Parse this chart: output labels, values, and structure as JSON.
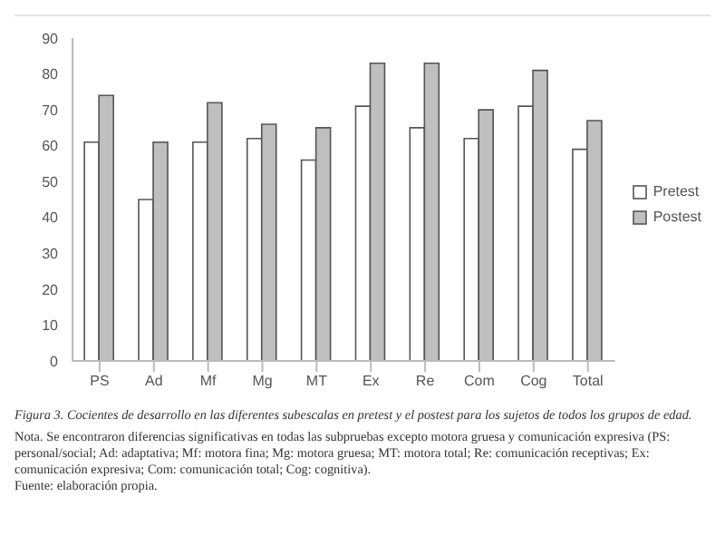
{
  "chart_data": {
    "type": "bar",
    "title": "Figura 3. Cocientes de desarrollo en las diferentes subescalas en pretest y el postest para los sujetos de todos los grupos de edad.",
    "annotations": [
      "Nota. Se encontraron diferencias significativas en todas las subpruebas excepto motora gruesa y comunicación expresiva (PS: personal/social; Ad: adaptativa; Mf: motora fina; Mg: motora gruesa; MT: motora total; Re: comunicación receptivas; Ex: comunicación expresiva; Com: comunicación total; Cog: cognitiva).",
      "Fuente: elaboración propia."
    ],
    "categories": [
      "PS",
      "Ad",
      "Mf",
      "Mg",
      "MT",
      "Ex",
      "Re",
      "Com",
      "Cog",
      "Total"
    ],
    "series": [
      {
        "name": "Pretest",
        "color": "#ffffff",
        "values": [
          61,
          45,
          61,
          62,
          56,
          71,
          65,
          62,
          71,
          59
        ]
      },
      {
        "name": "Postest",
        "color": "#bfbfbf",
        "values": [
          74,
          61,
          72,
          66,
          65,
          83,
          83,
          70,
          81,
          67
        ]
      }
    ],
    "ylim": [
      0,
      90
    ],
    "yticks": [
      0,
      10,
      20,
      30,
      40,
      50,
      60,
      70,
      80,
      90
    ],
    "grid": false,
    "legend": "right"
  }
}
